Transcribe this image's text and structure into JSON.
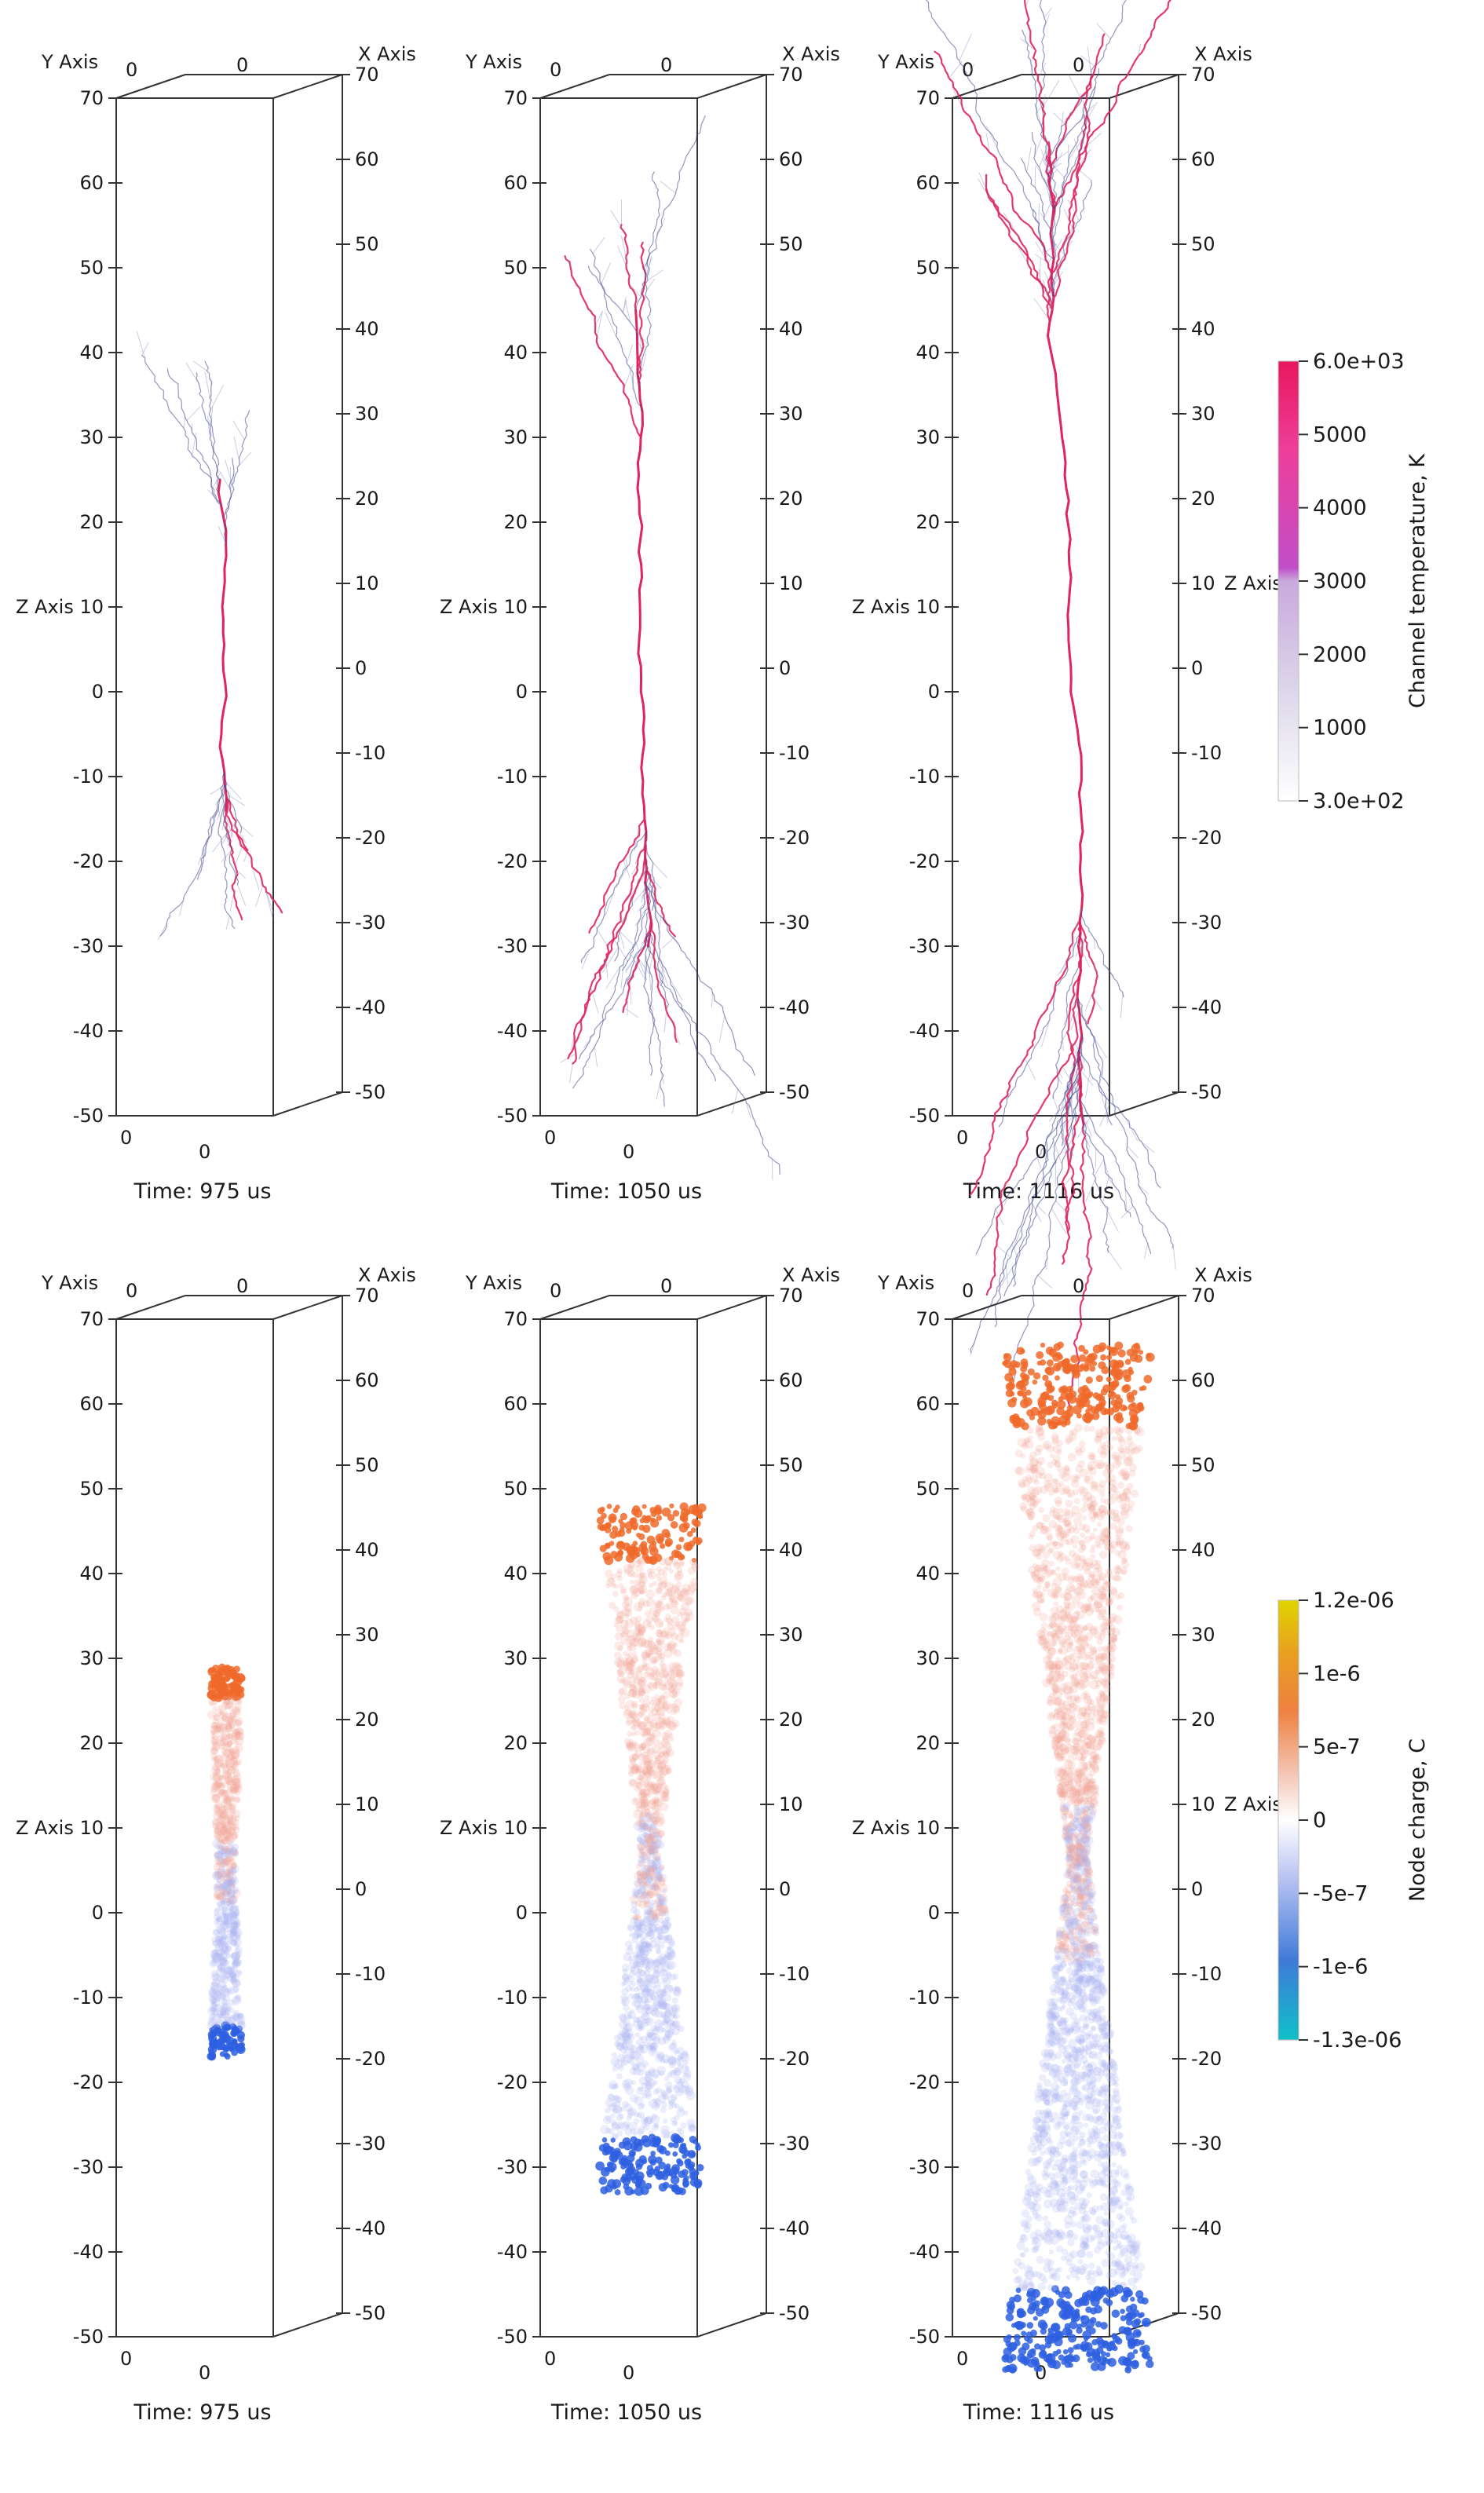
{
  "axis_labels": {
    "x": "X Axis",
    "y": "Y Axis",
    "z": "Z Axis"
  },
  "axis_ticks": {
    "z": [
      "70",
      "60",
      "50",
      "40",
      "30",
      "20",
      "10",
      "0",
      "-10",
      "-20",
      "-30",
      "-40",
      "-50"
    ],
    "x_top": "0",
    "y_top": "0",
    "x_bottom": "0",
    "y_bottom": "0"
  },
  "panels": [
    {
      "row": "temperature",
      "time_label": "Time: 975 us"
    },
    {
      "row": "temperature",
      "time_label": "Time: 1050 us"
    },
    {
      "row": "temperature",
      "time_label": "Time: 1116 us"
    },
    {
      "row": "charge",
      "time_label": "Time: 975 us"
    },
    {
      "row": "charge",
      "time_label": "Time: 1050 us"
    },
    {
      "row": "charge",
      "time_label": "Time: 1116 us"
    }
  ],
  "colorbars": {
    "temperature": {
      "title": "Channel temperature, K",
      "ticks": [
        "6.0e+03",
        "5000",
        "4000",
        "3000",
        "2000",
        "1000",
        "3.0e+02"
      ],
      "colors": [
        "#e8175d",
        "#ee3e9a",
        "#c14fc8",
        "#c9a9dd",
        "#dcd7ea",
        "#ffffff"
      ]
    },
    "charge": {
      "title": "Node charge, C",
      "ticks": [
        "1.2e-06",
        "1e-6",
        "5e-7",
        "0",
        "-5e-7",
        "-1e-6",
        "-1.3e-06"
      ],
      "colors": [
        "#e0d400",
        "#e88a20",
        "#f2b8a0",
        "#ffffff",
        "#c0c8f4",
        "#3f7ad8",
        "#10c0c8"
      ]
    }
  },
  "colors": {
    "channel_hot": "#e0245e",
    "channel_cool": "#3c3f8a",
    "branch_faint": "#8d8fc4",
    "charge_positive": "#ef6a2a",
    "charge_positive_light": "#f3a596",
    "charge_negative": "#2e5fe0",
    "charge_negative_light": "#a9b3f0"
  }
}
